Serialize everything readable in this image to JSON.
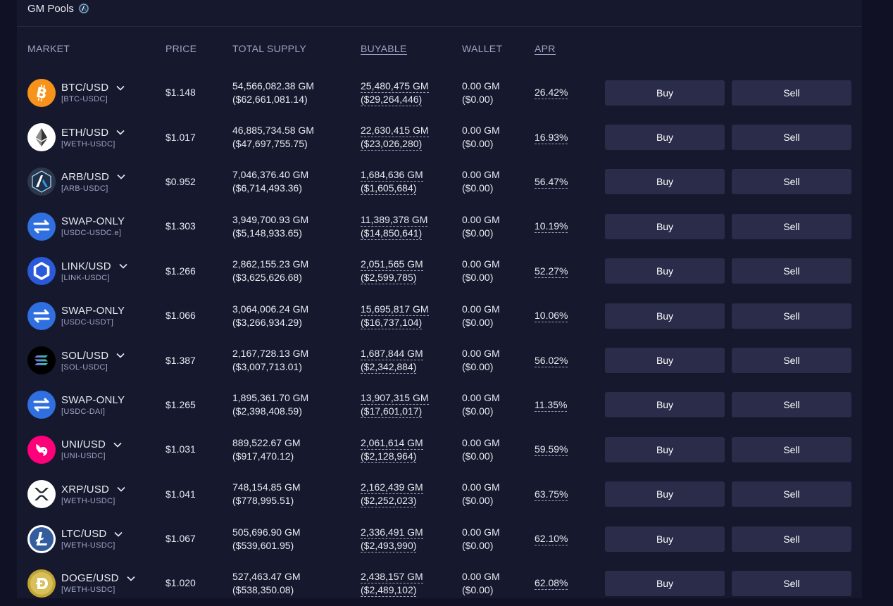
{
  "panel": {
    "title": "GM Pools"
  },
  "headers": {
    "market": "MARKET",
    "price": "PRICE",
    "total_supply": "TOTAL SUPPLY",
    "buyable": "BUYABLE",
    "wallet": "WALLET",
    "apr": "APR"
  },
  "buttons": {
    "buy": "Buy",
    "sell": "Sell"
  },
  "rows": [
    {
      "name": "BTC/USD",
      "pair": "[BTC-USDC]",
      "icon": "bitcoin-icon",
      "price": "$1.148",
      "supply_gm": "54,566,082.38 GM",
      "supply_usd": "($62,661,081.14)",
      "buyable_gm": "25,480,475 GM",
      "buyable_usd": "($29,264,446)",
      "wallet_gm": "0.00 GM",
      "wallet_usd": "($0.00)",
      "apr": "26.42%",
      "chevron": true
    },
    {
      "name": "ETH/USD",
      "pair": "[WETH-USDC]",
      "icon": "ethereum-icon",
      "price": "$1.017",
      "supply_gm": "46,885,734.58 GM",
      "supply_usd": "($47,697,755.75)",
      "buyable_gm": "22,630,415 GM",
      "buyable_usd": "($23,026,280)",
      "wallet_gm": "0.00 GM",
      "wallet_usd": "($0.00)",
      "apr": "16.93%",
      "chevron": true
    },
    {
      "name": "ARB/USD",
      "pair": "[ARB-USDC]",
      "icon": "arbitrum-icon",
      "price": "$0.952",
      "supply_gm": "7,046,376.40 GM",
      "supply_usd": "($6,714,493.36)",
      "buyable_gm": "1,684,636 GM",
      "buyable_usd": "($1,605,684)",
      "wallet_gm": "0.00 GM",
      "wallet_usd": "($0.00)",
      "apr": "56.47%",
      "chevron": true
    },
    {
      "name": "SWAP-ONLY",
      "pair": "[USDC-USDC.e]",
      "icon": "swap-icon",
      "price": "$1.303",
      "supply_gm": "3,949,700.93 GM",
      "supply_usd": "($5,148,933.65)",
      "buyable_gm": "11,389,378 GM",
      "buyable_usd": "($14,850,641)",
      "wallet_gm": "0.00 GM",
      "wallet_usd": "($0.00)",
      "apr": "10.19%",
      "chevron": false
    },
    {
      "name": "LINK/USD",
      "pair": "[LINK-USDC]",
      "icon": "chainlink-icon",
      "price": "$1.266",
      "supply_gm": "2,862,155.23 GM",
      "supply_usd": "($3,625,626.68)",
      "buyable_gm": "2,051,565 GM",
      "buyable_usd": "($2,599,785)",
      "wallet_gm": "0.00 GM",
      "wallet_usd": "($0.00)",
      "apr": "52.27%",
      "chevron": true
    },
    {
      "name": "SWAP-ONLY",
      "pair": "[USDC-USDT]",
      "icon": "swap-icon",
      "price": "$1.066",
      "supply_gm": "3,064,006.24 GM",
      "supply_usd": "($3,266,934.29)",
      "buyable_gm": "15,695,817 GM",
      "buyable_usd": "($16,737,104)",
      "wallet_gm": "0.00 GM",
      "wallet_usd": "($0.00)",
      "apr": "10.06%",
      "chevron": false
    },
    {
      "name": "SOL/USD",
      "pair": "[SOL-USDC]",
      "icon": "solana-icon",
      "price": "$1.387",
      "supply_gm": "2,167,728.13 GM",
      "supply_usd": "($3,007,713.01)",
      "buyable_gm": "1,687,844 GM",
      "buyable_usd": "($2,342,884)",
      "wallet_gm": "0.00 GM",
      "wallet_usd": "($0.00)",
      "apr": "56.02%",
      "chevron": true
    },
    {
      "name": "SWAP-ONLY",
      "pair": "[USDC-DAI]",
      "icon": "swap-icon",
      "price": "$1.265",
      "supply_gm": "1,895,361.70 GM",
      "supply_usd": "($2,398,408.59)",
      "buyable_gm": "13,907,315 GM",
      "buyable_usd": "($17,601,017)",
      "wallet_gm": "0.00 GM",
      "wallet_usd": "($0.00)",
      "apr": "11.35%",
      "chevron": false
    },
    {
      "name": "UNI/USD",
      "pair": "[UNI-USDC]",
      "icon": "uniswap-icon",
      "price": "$1.031",
      "supply_gm": "889,522.67 GM",
      "supply_usd": "($917,470.12)",
      "buyable_gm": "2,061,614 GM",
      "buyable_usd": "($2,128,964)",
      "wallet_gm": "0.00 GM",
      "wallet_usd": "($0.00)",
      "apr": "59.59%",
      "chevron": true
    },
    {
      "name": "XRP/USD",
      "pair": "[WETH-USDC]",
      "icon": "xrp-icon",
      "price": "$1.041",
      "supply_gm": "748,154.85 GM",
      "supply_usd": "($778,995.51)",
      "buyable_gm": "2,162,439 GM",
      "buyable_usd": "($2,252,023)",
      "wallet_gm": "0.00 GM",
      "wallet_usd": "($0.00)",
      "apr": "63.75%",
      "chevron": true
    },
    {
      "name": "LTC/USD",
      "pair": "[WETH-USDC]",
      "icon": "litecoin-icon",
      "price": "$1.067",
      "supply_gm": "505,696.90 GM",
      "supply_usd": "($539,601.95)",
      "buyable_gm": "2,336,491 GM",
      "buyable_usd": "($2,493,990)",
      "wallet_gm": "0.00 GM",
      "wallet_usd": "($0.00)",
      "apr": "62.10%",
      "chevron": true
    },
    {
      "name": "DOGE/USD",
      "pair": "[WETH-USDC]",
      "icon": "dogecoin-icon",
      "price": "$1.020",
      "supply_gm": "527,463.47 GM",
      "supply_usd": "($538,350.08)",
      "buyable_gm": "2,438,157 GM",
      "buyable_usd": "($2,489,102)",
      "wallet_gm": "0.00 GM",
      "wallet_usd": "($0.00)",
      "apr": "62.08%",
      "chevron": true
    }
  ]
}
